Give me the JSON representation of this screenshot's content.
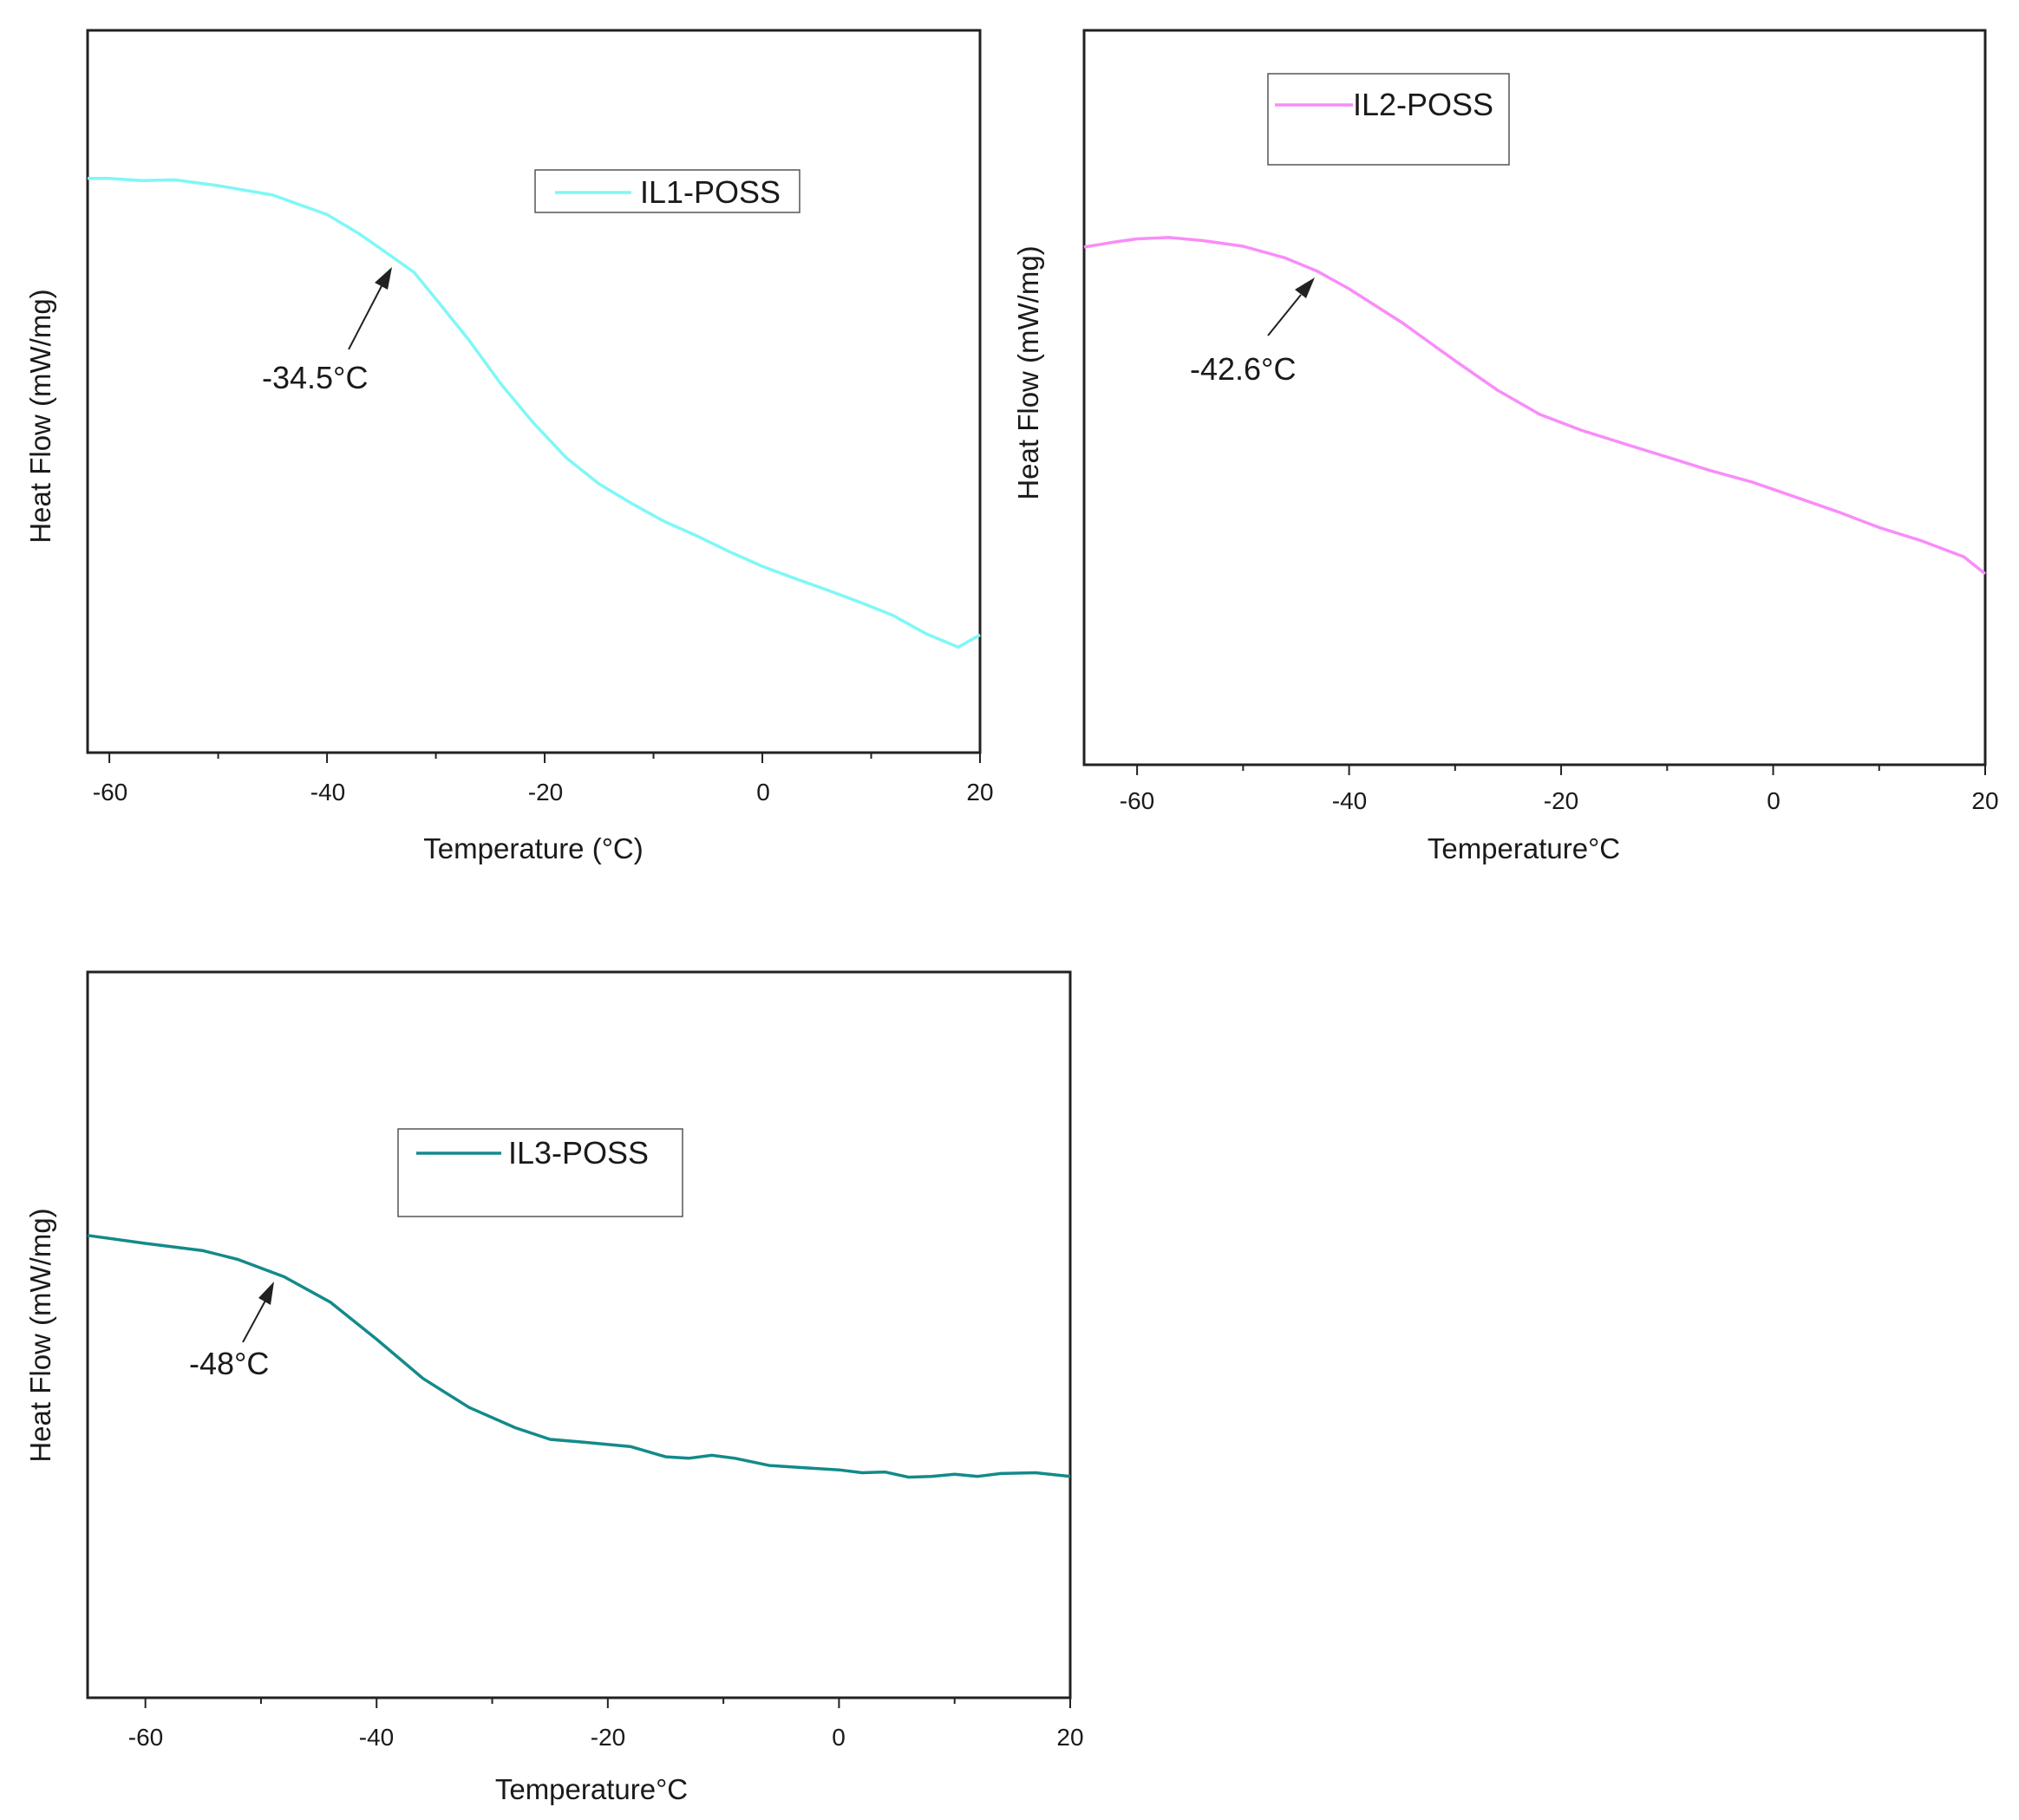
{
  "chart_data": [
    {
      "type": "line",
      "xlabel": "Temperature (°C)",
      "ylabel": "Heat Flow (mW/mg)",
      "xlim": [
        -62,
        20
      ],
      "ylim": [
        0,
        1
      ],
      "xticks": [
        -60,
        -40,
        -20,
        0,
        20
      ],
      "xtick_labels": [
        "-60",
        "-40",
        "-20",
        "0",
        "20"
      ],
      "yticks_shown": false,
      "legend_position": "top-right",
      "series": [
        {
          "name": "IL1-POSS",
          "color": "#7ff7f7",
          "x": [
            -62,
            -60,
            -57,
            -54,
            -50,
            -45,
            -40,
            -37,
            -35,
            -32,
            -30,
            -27,
            -24,
            -21,
            -18,
            -15,
            -12,
            -9,
            -6,
            -3,
            0,
            3,
            6,
            9,
            12,
            15,
            18,
            20
          ],
          "y": [
            0.795,
            0.795,
            0.792,
            0.793,
            0.785,
            0.772,
            0.745,
            0.718,
            0.697,
            0.665,
            0.628,
            0.572,
            0.51,
            0.456,
            0.408,
            0.372,
            0.345,
            0.32,
            0.3,
            0.278,
            0.258,
            0.241,
            0.225,
            0.208,
            0.19,
            0.165,
            0.146,
            0.163
          ]
        }
      ],
      "annotations": [
        {
          "text": "-34.5°C",
          "x": -34.5
        }
      ]
    },
    {
      "type": "line",
      "xlabel": "Temperature°C",
      "ylabel": "Heat Flow (mW/mg)",
      "xlim": [
        -65,
        20
      ],
      "ylim": [
        0,
        1
      ],
      "xticks": [
        -60,
        -40,
        -20,
        0,
        20
      ],
      "xtick_labels": [
        "-60",
        "-40",
        "-20",
        "0",
        "20"
      ],
      "yticks_shown": false,
      "legend_position": "top-left",
      "series": [
        {
          "name": "IL2-POSS",
          "color": "#f98cf9",
          "x": [
            -65,
            -62,
            -60,
            -57,
            -54,
            -50,
            -46,
            -43,
            -40,
            -35,
            -30,
            -26,
            -22,
            -18,
            -14,
            -10,
            -6,
            -2,
            2,
            6,
            10,
            14,
            18,
            20
          ],
          "y": [
            0.705,
            0.712,
            0.716,
            0.718,
            0.714,
            0.706,
            0.69,
            0.672,
            0.648,
            0.602,
            0.55,
            0.51,
            0.477,
            0.455,
            0.437,
            0.419,
            0.401,
            0.385,
            0.365,
            0.345,
            0.323,
            0.305,
            0.283,
            0.26
          ]
        }
      ],
      "annotations": [
        {
          "text": "-42.6°C",
          "x": -42.6
        }
      ]
    },
    {
      "type": "line",
      "xlabel": "Temperature°C",
      "ylabel": "Heat Flow (mW/mg)",
      "xlim": [
        -65,
        20
      ],
      "ylim": [
        0,
        1
      ],
      "xticks": [
        -60,
        -40,
        -20,
        0,
        20
      ],
      "xtick_labels": [
        "-60",
        "-40",
        "-20",
        "0",
        "20"
      ],
      "yticks_shown": false,
      "legend_position": "top-center",
      "series": [
        {
          "name": "IL3-POSS",
          "color": "#138a8a",
          "x": [
            -65,
            -60,
            -55,
            -52,
            -48,
            -44,
            -40,
            -36,
            -32,
            -28,
            -25,
            -22,
            -18,
            -15,
            -13,
            -11,
            -9,
            -6,
            -3,
            0,
            2,
            4,
            6,
            8,
            10,
            12,
            14,
            17,
            20
          ],
          "y": [
            0.637,
            0.626,
            0.616,
            0.604,
            0.58,
            0.545,
            0.494,
            0.44,
            0.4,
            0.372,
            0.356,
            0.352,
            0.346,
            0.332,
            0.33,
            0.334,
            0.33,
            0.32,
            0.317,
            0.314,
            0.31,
            0.311,
            0.304,
            0.305,
            0.308,
            0.305,
            0.309,
            0.31,
            0.305
          ]
        }
      ],
      "annotations": [
        {
          "text": "-48°C",
          "x": -48
        }
      ]
    }
  ]
}
